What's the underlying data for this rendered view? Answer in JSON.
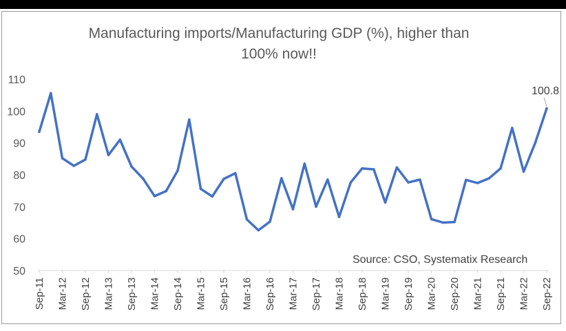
{
  "chart_data": {
    "type": "line",
    "title_line1": "Manufacturing imports/Manufacturing GDP (%), higher than",
    "title_line2": "100% now!!",
    "source": "Source: CSO, Systematix Research",
    "ylim": [
      50,
      110
    ],
    "yticks": [
      50,
      60,
      70,
      80,
      90,
      100,
      110
    ],
    "xtick_labels": [
      "Sep-11",
      "Mar-12",
      "Sep-12",
      "Mar-13",
      "Sep-13",
      "Mar-14",
      "Sep-14",
      "Mar-15",
      "Sep-15",
      "Mar-16",
      "Sep-16",
      "Mar-17",
      "Sep-17",
      "Mar-18",
      "Sep-18",
      "Mar-19",
      "Sep-19",
      "Mar-20",
      "Sep-20",
      "Mar-21",
      "Sep-21",
      "Mar-22",
      "Sep-22"
    ],
    "last_label": "100.8",
    "grid": false,
    "line_color": "#4472c4",
    "series": [
      {
        "values": [
          93.5,
          105.6,
          85.2,
          82.8,
          84.8,
          99.0,
          86.2,
          91.0,
          82.6,
          78.8,
          73.3,
          74.9,
          81.3,
          97.3,
          75.6,
          73.2,
          78.7,
          80.5,
          66.0,
          62.6,
          65.3,
          78.9,
          69.2,
          83.5,
          70.0,
          78.5,
          66.8,
          77.6,
          82.0,
          81.7,
          71.3,
          82.3,
          77.6,
          78.5,
          66.1,
          65.0,
          65.2,
          78.4,
          77.4,
          78.9,
          82.0,
          94.7,
          81.0,
          90.0,
          100.8
        ]
      }
    ]
  }
}
